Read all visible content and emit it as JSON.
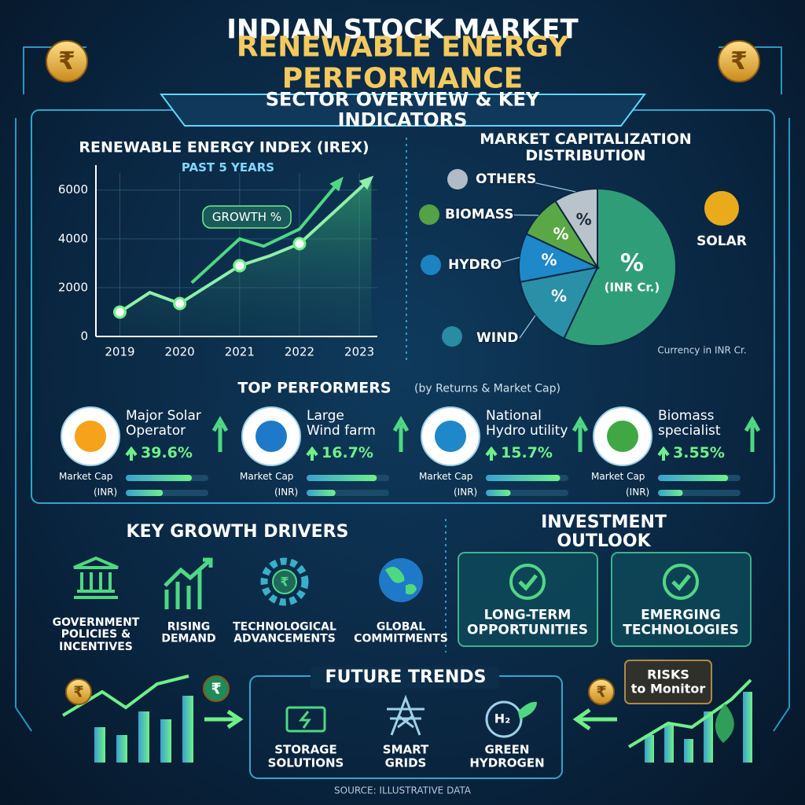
{
  "header": {
    "title": "INDIAN STOCK MARKET",
    "subtitle": "RENEWABLE ENERGY PERFORMANCE",
    "currency_symbol": "₹"
  },
  "section_title": "SECTOR OVERVIEW & KEY INDICATORS",
  "chart_data": [
    {
      "type": "line",
      "title": "RENEWABLE ENERGY INDEX (IREX)",
      "subtitle": "PAST 5 YEARS",
      "annotation": "GROWTH %",
      "xlim": [
        2018.6,
        2023.3
      ],
      "xticks": [
        2019,
        2020,
        2021,
        2022,
        2023
      ],
      "ylim": [
        0,
        6700
      ],
      "yticks": [
        0,
        2000,
        4000,
        6000
      ],
      "grid": true,
      "series": [
        {
          "color": "#8ef0a8",
          "area": true,
          "x": [
            2019,
            2019.5,
            2020,
            2021,
            2021.5,
            2022,
            2023.2
          ],
          "values": [
            1000,
            1800,
            1350,
            2900,
            3300,
            3800,
            6500
          ]
        },
        {
          "color": "#4fd882",
          "x": [
            2020.2,
            2021,
            2021.4,
            2022,
            2022.7
          ],
          "values": [
            2200,
            4000,
            3700,
            4400,
            6450
          ]
        }
      ]
    },
    {
      "type": "pie",
      "title": "MARKET CAPITALIZATION DISTRIBUTION",
      "categories": [
        "SOLAR",
        "WIND",
        "HYDRO",
        "BIOMASS",
        "OTHERS"
      ],
      "values": [
        57,
        15,
        10,
        9,
        9
      ],
      "colors": [
        "#2f9e78",
        "#2a90a8",
        "#1e88c8",
        "#5aa845",
        "#b9c3cc"
      ],
      "slice_label": "%",
      "center_note": "(INR Cr.)",
      "note": "Currency in INR Cr."
    }
  ],
  "top_performers": {
    "title": "TOP PERFORMERS",
    "subtitle": "(by Returns & Market Cap)",
    "items": [
      {
        "name": "Major Solar\nOperator",
        "return": "39.6%",
        "cap_label": "Market Cap",
        "cap_unit": "(INR)",
        "bars": [
          0.8,
          0.45
        ]
      },
      {
        "name": "Large\nWind farm",
        "return": "16.7%",
        "cap_label": "Market Cap",
        "cap_unit": "(INR)",
        "bars": [
          0.85,
          0.35
        ]
      },
      {
        "name": "National\nHydro utility",
        "return": "15.7%",
        "cap_label": "Market Cap",
        "cap_unit": "(INR)",
        "bars": [
          0.9,
          0.3
        ]
      },
      {
        "name": "Biomass\nspecialist",
        "return": "3.55%",
        "cap_label": "Market Cap",
        "cap_unit": "(INR)",
        "bars": [
          0.85,
          0.3
        ]
      }
    ]
  },
  "growth_drivers": {
    "title": "KEY GROWTH DRIVERS",
    "items": [
      "GOVERNMENT\nPOLICIES &\nINCENTIVES",
      "RISING\nDEMAND",
      "TECHNOLOGICAL\nADVANCEMENTS",
      "GLOBAL\nCOMMITMENTS"
    ]
  },
  "investment_outlook": {
    "title": "INVESTMENT OUTLOOK",
    "items": [
      "LONG-TERM\nOPPORTUNITIES",
      "EMERGING\nTECHNOLOGIES"
    ]
  },
  "future_trends": {
    "title": "FUTURE TRENDS",
    "items": [
      "STORAGE\nSOLUTIONS",
      "SMART\nGRIDS",
      "GREEN\nHYDROGEN"
    ],
    "hydrogen_icon": "H₂"
  },
  "risks": "RISKS\nto Monitor",
  "source": "SOURCE: ILLUSTRATIVE DATA"
}
